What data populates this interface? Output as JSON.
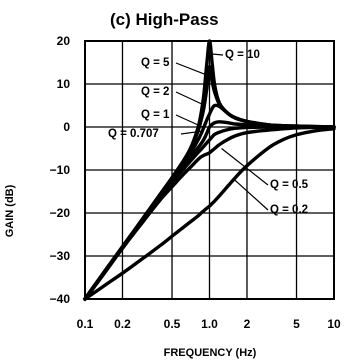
{
  "chart_data": {
    "type": "line",
    "title": "(c) High-Pass",
    "xlabel": "FREQUENCY (Hz)",
    "ylabel": "GAIN (dB)",
    "x_scale": "log",
    "xlim": [
      0.1,
      10
    ],
    "ylim": [
      -40,
      20
    ],
    "grid": true,
    "x_ticks": [
      {
        "value": 0.1,
        "label": "0.1"
      },
      {
        "value": 0.2,
        "label": "0.2"
      },
      {
        "value": 0.5,
        "label": "0.5"
      },
      {
        "value": 1.0,
        "label": "1.0"
      },
      {
        "value": 2,
        "label": "2"
      },
      {
        "value": 5,
        "label": "5"
      },
      {
        "value": 10,
        "label": "10"
      }
    ],
    "y_ticks": [
      {
        "value": 20,
        "label": "20"
      },
      {
        "value": 10,
        "label": "10"
      },
      {
        "value": 0,
        "label": "0"
      },
      {
        "value": -10,
        "label": "−10"
      },
      {
        "value": -20,
        "label": "−20"
      },
      {
        "value": -30,
        "label": "−30"
      },
      {
        "value": -40,
        "label": "−40"
      }
    ],
    "color": "#000000",
    "x": [
      0.1,
      0.15,
      0.2,
      0.3,
      0.4,
      0.5,
      0.6,
      0.7,
      0.8,
      0.85,
      0.9,
      0.95,
      1.0,
      1.05,
      1.1,
      1.2,
      1.4,
      1.6,
      2,
      3,
      4,
      5,
      7,
      10
    ],
    "series": [
      {
        "name": "Q = 10",
        "label": "Q = 10",
        "values": [
          -39.96,
          -32.9,
          -27.9,
          -20.8,
          -15.7,
          -11.8,
          -8.4,
          -5.1,
          -0.6,
          2.7,
          7.5,
          14.5,
          20.0,
          14.9,
          9.7,
          5.6,
          3.2,
          2.2,
          1.3,
          0.5,
          0.3,
          0.2,
          0.1,
          0.04
        ]
      },
      {
        "name": "Q = 5",
        "label": "Q = 5",
        "values": [
          -39.97,
          -32.9,
          -27.9,
          -20.8,
          -15.7,
          -11.8,
          -8.5,
          -5.3,
          -1.3,
          1.2,
          4.3,
          8.8,
          14.0,
          10.6,
          8.1,
          5.3,
          3.2,
          2.1,
          1.3,
          0.5,
          0.3,
          0.2,
          0.1,
          0.04
        ]
      },
      {
        "name": "Q = 2",
        "label": "Q = 2",
        "values": [
          -39.9,
          -32.8,
          -27.8,
          -20.8,
          -15.8,
          -12.0,
          -8.9,
          -6.2,
          -3.3,
          -1.8,
          -0.1,
          1.6,
          3.0,
          4.3,
          5.0,
          4.8,
          3.2,
          2.2,
          1.2,
          0.5,
          0.2,
          0.2,
          0.1,
          0.04
        ]
      },
      {
        "name": "Q = 1",
        "label": "Q = 1",
        "values": [
          -39.96,
          -32.9,
          -28.1,
          -21.1,
          -16.2,
          -12.6,
          -9.6,
          -7.1,
          -5.0,
          -4.0,
          -2.9,
          -1.5,
          0.0,
          0.6,
          1.0,
          1.2,
          1.0,
          0.7,
          0.5,
          0.2,
          0.1,
          0.06,
          0.03,
          0.01
        ]
      },
      {
        "name": "Q = 0.707",
        "label": "Q = 0.707",
        "values": [
          -40.0,
          -33.0,
          -28.0,
          -21.2,
          -16.4,
          -12.9,
          -10.2,
          -8.0,
          -6.1,
          -5.3,
          -4.5,
          -3.7,
          -3.0,
          -2.3,
          -1.7,
          -1.2,
          -0.6,
          -0.3,
          -0.1,
          -0.02,
          -0.01,
          0.0,
          0.0,
          0.0
        ]
      },
      {
        "name": "Q = 0.5",
        "label": "Q = 0.5",
        "values": [
          -40.1,
          -33.2,
          -28.2,
          -21.6,
          -17.0,
          -13.9,
          -11.4,
          -9.4,
          -7.7,
          -7.0,
          -6.6,
          -6.3,
          -6.0,
          -5.5,
          -5.0,
          -4.1,
          -2.9,
          -2.1,
          -1.3,
          -0.7,
          -0.4,
          -0.2,
          -0.1,
          -0.04
        ]
      },
      {
        "name": "Q = 0.2",
        "label": "Q = 0.2",
        "values": [
          -40.0,
          -36.5,
          -34.0,
          -30.3,
          -27.6,
          -25.4,
          -23.6,
          -22.1,
          -20.8,
          -20.1,
          -19.5,
          -18.9,
          -18.4,
          -17.8,
          -17.2,
          -16.0,
          -13.8,
          -11.9,
          -9.0,
          -4.8,
          -2.8,
          -1.8,
          -0.9,
          -0.4
        ]
      }
    ],
    "annotations": [
      {
        "text": "Q = 10",
        "target_x": 1.02,
        "target_y": 17
      },
      {
        "text": "Q = 5",
        "target_x": 0.97,
        "target_y": 12
      },
      {
        "text": "Q = 2",
        "target_x": 0.92,
        "target_y": 5
      },
      {
        "text": "Q = 1",
        "target_x": 0.88,
        "target_y": 0
      },
      {
        "text": "Q = 0.707",
        "target_x": 0.85,
        "target_y": -1
      },
      {
        "text": "Q = 0.5",
        "target_x": 1.25,
        "target_y": -5
      },
      {
        "text": "Q = 0.2",
        "target_x": 1.55,
        "target_y": -12
      }
    ]
  }
}
